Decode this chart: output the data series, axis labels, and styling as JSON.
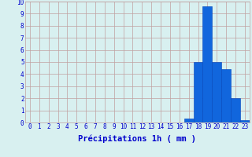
{
  "hours": [
    0,
    1,
    2,
    3,
    4,
    5,
    6,
    7,
    8,
    9,
    10,
    11,
    12,
    13,
    14,
    15,
    16,
    17,
    18,
    19,
    20,
    21,
    22,
    23
  ],
  "values": [
    0,
    0,
    0,
    0,
    0,
    0,
    0,
    0,
    0,
    0,
    0,
    0,
    0,
    0,
    0,
    0,
    0,
    0.3,
    5.0,
    9.6,
    5.0,
    4.4,
    2.0,
    0.2
  ],
  "bar_color": "#1166dd",
  "bar_edge_color": "#0044bb",
  "background_color": "#d8f0f0",
  "grid_color": "#c0a0a0",
  "xlabel": "Précipitations 1h ( mm )",
  "ylim": [
    0,
    10
  ],
  "xlim": [
    -0.5,
    23.5
  ],
  "yticks": [
    0,
    1,
    2,
    3,
    4,
    5,
    6,
    7,
    8,
    9,
    10
  ],
  "xticks": [
    0,
    1,
    2,
    3,
    4,
    5,
    6,
    7,
    8,
    9,
    10,
    11,
    12,
    13,
    14,
    15,
    16,
    17,
    18,
    19,
    20,
    21,
    22,
    23
  ],
  "tick_color": "#0000cc",
  "label_color": "#0000cc",
  "xlabel_fontsize": 7.5,
  "tick_fontsize": 5.5
}
